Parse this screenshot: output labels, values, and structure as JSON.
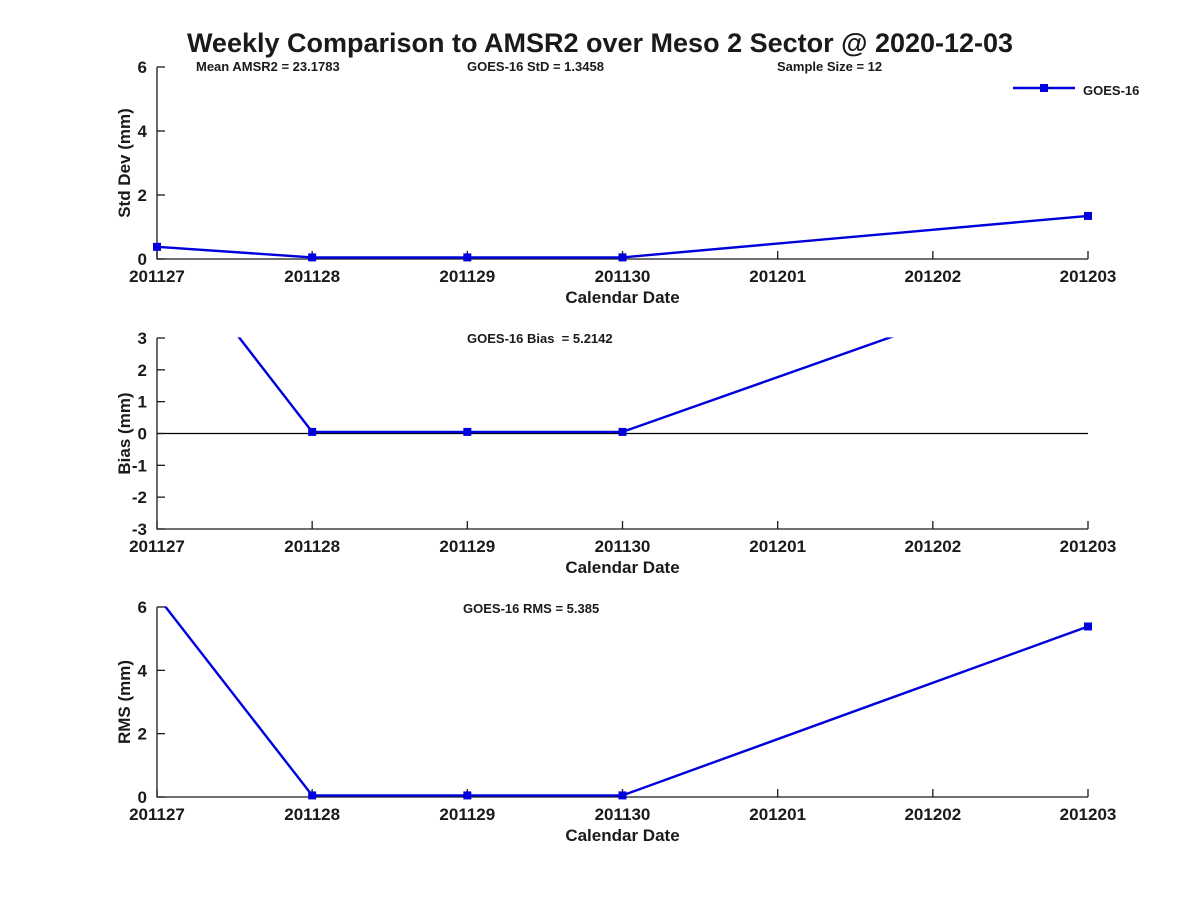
{
  "figure": {
    "title": "Weekly Comparison to AMSR2 over Meso 2 Sector @ 2020-12-03",
    "stats": [
      {
        "label": "Mean AMSR2 = 23.1783"
      },
      {
        "label": "GOES-16 StD = 1.3458"
      },
      {
        "label": "Sample Size = 12"
      }
    ],
    "legend": {
      "label": "GOES-16",
      "marker": "filled-square"
    },
    "colors": {
      "series": "#0000DD",
      "axis": "#1a1a1a",
      "zero_line": "#000000",
      "background": "#ffffff"
    }
  },
  "chart_data": [
    {
      "type": "line",
      "id": "std-dev",
      "annotation": "",
      "xlabel": "Calendar Date",
      "ylabel": "Std Dev (mm)",
      "x_categories": [
        "201127",
        "201128",
        "201129",
        "201130",
        "201201",
        "201202",
        "201203"
      ],
      "ylim": [
        0,
        6
      ],
      "yticks": [
        0,
        2,
        4,
        6
      ],
      "zero_line": false,
      "grid": false,
      "series": [
        {
          "name": "GOES-16",
          "x": [
            "201127",
            "201128",
            "201129",
            "201130",
            "201203"
          ],
          "values": [
            0.38,
            0.05,
            0.05,
            0.05,
            1.3458
          ]
        }
      ]
    },
    {
      "type": "line",
      "id": "bias",
      "annotation": "GOES-16 Bias  = 5.2142",
      "xlabel": "Calendar Date",
      "ylabel": "Bias (mm)",
      "x_categories": [
        "201127",
        "201128",
        "201129",
        "201130",
        "201201",
        "201202",
        "201203"
      ],
      "ylim": [
        -3,
        3
      ],
      "yticks": [
        -3,
        -2,
        -1,
        0,
        1,
        2,
        3
      ],
      "zero_line": true,
      "grid": false,
      "series": [
        {
          "name": "GOES-16",
          "x": [
            "201127",
            "201128",
            "201129",
            "201130",
            "201203"
          ],
          "values": [
            6.35,
            0.05,
            0.05,
            0.05,
            5.2142
          ]
        }
      ]
    },
    {
      "type": "line",
      "id": "rms",
      "annotation": "GOES-16 RMS = 5.385",
      "xlabel": "Calendar Date",
      "ylabel": "RMS (mm)",
      "x_categories": [
        "201127",
        "201128",
        "201129",
        "201130",
        "201201",
        "201202",
        "201203"
      ],
      "ylim": [
        0,
        6
      ],
      "yticks": [
        0,
        2,
        4,
        6
      ],
      "zero_line": false,
      "grid": false,
      "series": [
        {
          "name": "GOES-16",
          "x": [
            "201127",
            "201128",
            "201129",
            "201130",
            "201203"
          ],
          "values": [
            6.35,
            0.05,
            0.05,
            0.05,
            5.385
          ]
        }
      ]
    }
  ]
}
